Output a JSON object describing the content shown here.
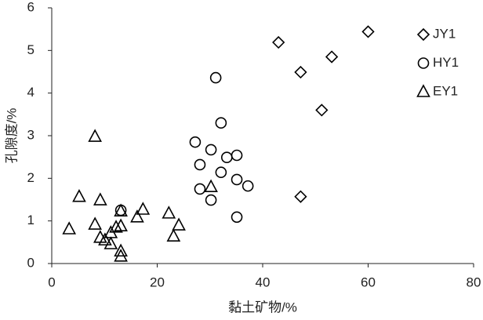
{
  "chart_data": {
    "type": "scatter",
    "x_label": "黏土矿物/%",
    "y_label": "孔隙度/%",
    "xlim": [
      0,
      80
    ],
    "xticks": [
      0,
      20,
      40,
      60,
      80
    ],
    "ylim": [
      0,
      6
    ],
    "yticks": [
      0,
      1,
      2,
      3,
      4,
      5,
      6
    ],
    "legend": "right",
    "series": [
      {
        "name": "JY1",
        "color": "#000000",
        "marker": "diamond",
        "x": [
          43.0,
          47.2,
          53.1,
          60.0,
          51.2,
          47.2
        ],
        "values": [
          5.19,
          4.49,
          4.85,
          5.44,
          3.6,
          1.57
        ]
      },
      {
        "name": "HY1",
        "color": "#000000",
        "marker": "circle",
        "x": [
          31.1,
          32.1,
          27.2,
          30.2,
          33.2,
          35.1,
          28.1,
          32.1,
          35.1,
          37.2,
          28.1,
          30.2,
          35.1,
          13.1
        ],
        "values": [
          4.36,
          3.3,
          2.85,
          2.67,
          2.49,
          2.54,
          2.32,
          2.14,
          1.97,
          1.82,
          1.75,
          1.49,
          1.09,
          1.25
        ]
      },
      {
        "name": "EY1",
        "color": "#000000",
        "marker": "triangle",
        "x": [
          8.2,
          5.2,
          9.2,
          13.1,
          17.3,
          22.2,
          16.2,
          30.2,
          3.3,
          8.2,
          12.2,
          13.1,
          24.1,
          11.2,
          9.2,
          10.1,
          11.2,
          23.1,
          13.1,
          13.1
        ],
        "values": [
          2.98,
          1.57,
          1.49,
          1.23,
          1.27,
          1.18,
          1.09,
          1.8,
          0.81,
          0.92,
          0.85,
          0.88,
          0.9,
          0.72,
          0.61,
          0.55,
          0.46,
          0.64,
          0.29,
          0.17
        ]
      }
    ]
  }
}
